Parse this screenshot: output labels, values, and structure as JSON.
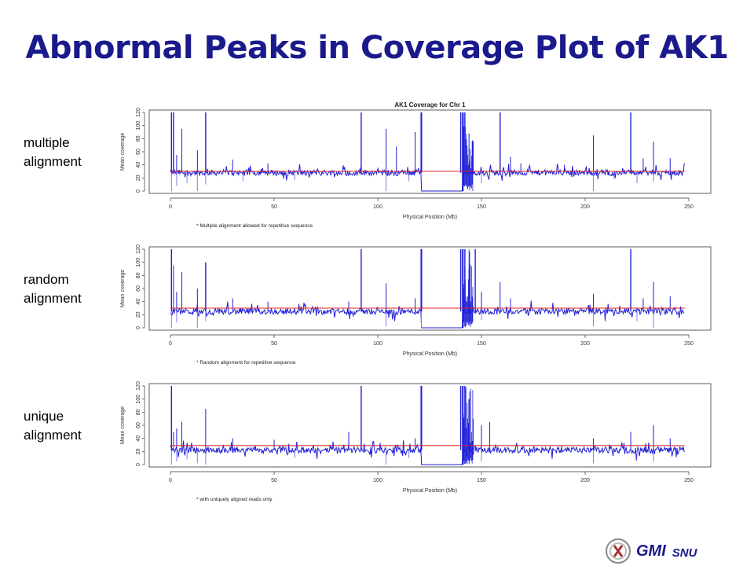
{
  "slide": {
    "title": "Abnormal Peaks in Coverage Plot of AK1",
    "footer": {
      "logo_text": "GMI",
      "logo_sub": "SNU"
    }
  },
  "colors": {
    "title": "#1a1a8c",
    "series": "#1f1fd6",
    "series_light": "#7f7fef",
    "mean_line": "#e02020"
  },
  "chart_data": [
    {
      "type": "line",
      "side_label": [
        "multiple",
        "alignment"
      ],
      "title": "AK1 Coverage for Chr 1",
      "xlabel": "Physical Position (Mb)",
      "ylabel": "Mean coverage",
      "note": "* Multiple alignment allowed for repetitive sequence",
      "xlim": [
        0,
        250
      ],
      "ylim": [
        0,
        120
      ],
      "x_ticks": [
        0,
        50,
        100,
        150,
        200,
        250
      ],
      "y_ticks": [
        0,
        20,
        40,
        60,
        80,
        100,
        120
      ],
      "series": [
        {
          "baseline": 28,
          "mean": 30,
          "gap": [
            121,
            141
          ],
          "peaks": [
            [
              0.5,
              120
            ],
            [
              1.5,
              120
            ],
            [
              3,
              55
            ],
            [
              5.5,
              95
            ],
            [
              13,
              62
            ],
            [
              17,
              120
            ],
            [
              30,
              48
            ],
            [
              47,
              42
            ],
            [
              92,
              120
            ],
            [
              104,
              95
            ],
            [
              109,
              68
            ],
            [
              118,
              90
            ],
            [
              121,
              120
            ],
            [
              140,
              120
            ],
            [
              142,
              120
            ],
            [
              144,
              88
            ],
            [
              146,
              75
            ],
            [
              159,
              120
            ],
            [
              164,
              52
            ],
            [
              169,
              42
            ],
            [
              190,
              40
            ],
            [
              204,
              85
            ],
            [
              222,
              120
            ],
            [
              228,
              50
            ],
            [
              233,
              75
            ],
            [
              241,
              50
            ]
          ],
          "dips": [
            [
              0.5,
              0
            ],
            [
              3,
              8
            ],
            [
              8,
              12
            ],
            [
              13,
              0
            ],
            [
              17,
              10
            ],
            [
              35,
              15
            ],
            [
              60,
              17
            ],
            [
              104,
              0
            ],
            [
              115,
              15
            ],
            [
              150,
              12
            ],
            [
              204,
              0
            ],
            [
              214,
              18
            ],
            [
              225,
              12
            ],
            [
              233,
              14
            ]
          ]
        }
      ]
    },
    {
      "type": "line",
      "side_label": [
        "random",
        "alignment"
      ],
      "xlabel": "Physical Position (Mb)",
      "ylabel": "Mean coverage",
      "note": "* Random alignment for repetitive sequence",
      "xlim": [
        0,
        250
      ],
      "ylim": [
        0,
        120
      ],
      "x_ticks": [
        0,
        50,
        100,
        150,
        200,
        250
      ],
      "y_ticks": [
        0,
        20,
        40,
        60,
        80,
        100,
        120
      ],
      "series": [
        {
          "baseline": 25,
          "mean": 30,
          "gap": [
            121,
            141
          ],
          "peaks": [
            [
              0.5,
              120
            ],
            [
              1.5,
              95
            ],
            [
              3,
              55
            ],
            [
              5.5,
              85
            ],
            [
              13,
              60
            ],
            [
              17,
              100
            ],
            [
              30,
              45
            ],
            [
              47,
              40
            ],
            [
              86,
              40
            ],
            [
              92,
              120
            ],
            [
              104,
              68
            ],
            [
              118,
              45
            ],
            [
              121,
              120
            ],
            [
              140,
              120
            ],
            [
              142,
              120
            ],
            [
              144,
              90
            ],
            [
              147,
              120
            ],
            [
              150,
              55
            ],
            [
              159,
              70
            ],
            [
              164,
              45
            ],
            [
              204,
              52
            ],
            [
              222,
              120
            ],
            [
              228,
              45
            ],
            [
              233,
              70
            ],
            [
              241,
              48
            ]
          ],
          "dips": [
            [
              0.5,
              0
            ],
            [
              3,
              8
            ],
            [
              13,
              0
            ],
            [
              17,
              10
            ],
            [
              104,
              2
            ],
            [
              121,
              0
            ],
            [
              150,
              12
            ],
            [
              204,
              2
            ],
            [
              225,
              10
            ],
            [
              233,
              0
            ]
          ]
        }
      ]
    },
    {
      "type": "line",
      "side_label": [
        "unique",
        "alignment"
      ],
      "xlabel": "Physical Position (Mb)",
      "ylabel": "Mean coverage",
      "note": "* with uniquely aligned reads only",
      "xlim": [
        0,
        250
      ],
      "ylim": [
        0,
        120
      ],
      "x_ticks": [
        0,
        50,
        100,
        150,
        200,
        250
      ],
      "y_ticks": [
        0,
        20,
        40,
        60,
        80,
        100,
        120
      ],
      "series": [
        {
          "baseline": 22,
          "mean": 29,
          "gap": [
            121,
            141
          ],
          "peaks": [
            [
              0.5,
              120
            ],
            [
              1.5,
              50
            ],
            [
              3,
              55
            ],
            [
              5.5,
              65
            ],
            [
              17,
              85
            ],
            [
              30,
              40
            ],
            [
              50,
              38
            ],
            [
              86,
              50
            ],
            [
              92,
              120
            ],
            [
              118,
              40
            ],
            [
              121,
              120
            ],
            [
              140,
              120
            ],
            [
              142,
              120
            ],
            [
              144,
              100
            ],
            [
              146,
              70
            ],
            [
              150,
              60
            ],
            [
              154,
              65
            ],
            [
              204,
              40
            ],
            [
              222,
              50
            ],
            [
              233,
              60
            ],
            [
              241,
              40
            ]
          ],
          "dips": [
            [
              0.5,
              0
            ],
            [
              3,
              5
            ],
            [
              8,
              8
            ],
            [
              13,
              2
            ],
            [
              17,
              0
            ],
            [
              60,
              10
            ],
            [
              104,
              0
            ],
            [
              115,
              10
            ],
            [
              150,
              5
            ],
            [
              204,
              2
            ],
            [
              225,
              10
            ],
            [
              233,
              5
            ]
          ]
        }
      ]
    }
  ]
}
